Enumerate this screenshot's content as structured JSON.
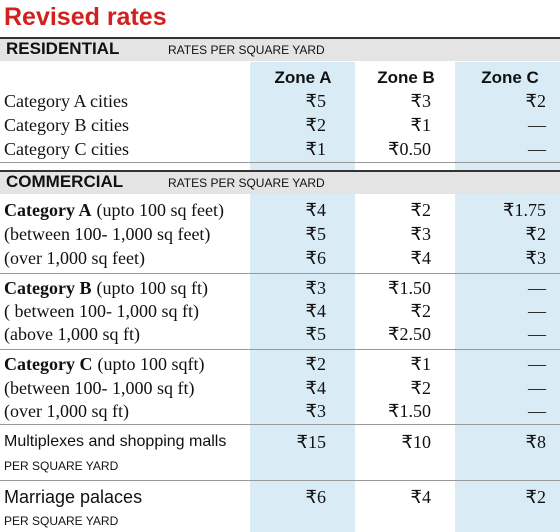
{
  "title": "Revised rates",
  "columns": [
    "Zone A",
    "Zone B",
    "Zone C"
  ],
  "residential": {
    "name": "RESIDENTIAL",
    "note": "RATES PER SQUARE YARD",
    "rows": [
      {
        "label": "Category A cities",
        "values": [
          "₹5",
          "₹3",
          "₹2"
        ]
      },
      {
        "label": "Category B cities",
        "values": [
          "₹2",
          "₹1",
          "—"
        ]
      },
      {
        "label": "Category C cities",
        "values": [
          "₹1",
          "₹0.50",
          "—"
        ]
      }
    ]
  },
  "commercial": {
    "name": "COMMERCIAL",
    "note": "RATES PER SQUARE YARD",
    "groups": [
      {
        "rows": [
          {
            "bold": "Category A",
            "label": "(upto 100 sq feet)",
            "values": [
              "₹4",
              "₹2",
              "₹1.75"
            ]
          },
          {
            "label": "(between 100- 1,000 sq feet)",
            "values": [
              "₹5",
              "₹3",
              "₹2"
            ]
          },
          {
            "label": "(over 1,000 sq feet)",
            "values": [
              "₹6",
              "₹4",
              "₹3"
            ]
          }
        ]
      },
      {
        "rows": [
          {
            "bold": "Category B",
            "label": "(upto 100 sq ft)",
            "values": [
              "₹3",
              "₹1.50",
              "—"
            ]
          },
          {
            "label": "( between 100- 1,000 sq ft)",
            "values": [
              "₹4",
              "₹2",
              "—"
            ]
          },
          {
            "label": "(above 1,000 sq ft)",
            "values": [
              "₹5",
              "₹2.50",
              "—"
            ]
          }
        ]
      },
      {
        "rows": [
          {
            "bold": "Category C",
            "label": "(upto 100 sqft)",
            "values": [
              "₹2",
              "₹1",
              "—"
            ]
          },
          {
            "label": "(between 100- 1,000 sq ft)",
            "values": [
              "₹4",
              "₹2",
              "—"
            ]
          },
          {
            "label": "(over 1,000 sq ft)",
            "values": [
              "₹3",
              "₹1.50",
              "—"
            ]
          }
        ]
      }
    ]
  },
  "others": [
    {
      "label": "Multiplexes and shopping malls",
      "unit": "PER SQUARE YARD",
      "values": [
        "₹15",
        "₹10",
        "₹8"
      ]
    },
    {
      "label": "Marriage palaces",
      "unit": "PER SQUARE YARD",
      "values": [
        "₹6",
        "₹4",
        "₹2"
      ]
    }
  ]
}
